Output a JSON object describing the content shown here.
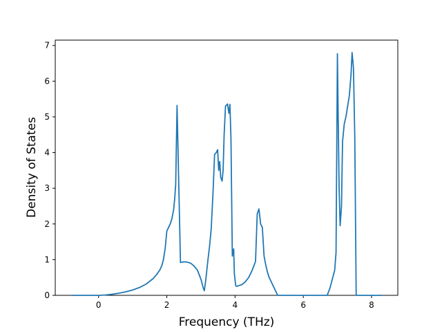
{
  "chart_data": {
    "type": "line",
    "title": "",
    "xlabel": "Frequency (THz)",
    "ylabel": "Density of States",
    "xlim": [
      -1.27,
      8.77
    ],
    "ylim": [
      0,
      7.15
    ],
    "x_ticks": [
      0,
      2,
      4,
      6,
      8
    ],
    "y_ticks": [
      0,
      1,
      2,
      3,
      4,
      5,
      6,
      7
    ],
    "x_tick_labels": [
      "0",
      "2",
      "4",
      "6",
      "8"
    ],
    "y_tick_labels": [
      "0",
      "1",
      "2",
      "3",
      "4",
      "5",
      "6",
      "7"
    ],
    "grid": false,
    "legend": "none",
    "series": [
      {
        "color": "#1f77b4",
        "x": [
          -0.77,
          -0.5,
          0.0,
          0.2,
          0.4,
          0.6,
          0.8,
          1.0,
          1.2,
          1.4,
          1.6,
          1.7,
          1.8,
          1.86,
          1.9,
          1.95,
          2.0,
          2.05,
          2.1,
          2.15,
          2.2,
          2.23,
          2.26,
          2.3,
          2.4,
          2.5,
          2.6,
          2.7,
          2.8,
          2.9,
          3.0,
          3.07,
          3.1,
          3.15,
          3.2,
          3.25,
          3.3,
          3.34,
          3.36,
          3.4,
          3.45,
          3.49,
          3.52,
          3.55,
          3.58,
          3.62,
          3.65,
          3.68,
          3.72,
          3.78,
          3.82,
          3.85,
          3.88,
          3.92,
          3.96,
          3.98,
          4.02,
          4.05,
          4.1,
          4.2,
          4.3,
          4.4,
          4.5,
          4.6,
          4.65,
          4.7,
          4.75,
          4.8,
          4.85,
          4.9,
          4.95,
          5.0,
          5.1,
          5.2,
          5.25,
          5.5,
          6.0,
          6.5,
          6.7,
          6.78,
          6.85,
          6.92,
          6.96,
          7.0,
          7.02,
          7.05,
          7.08,
          7.12,
          7.15,
          7.2,
          7.25,
          7.3,
          7.35,
          7.4,
          7.43,
          7.47,
          7.51,
          7.55,
          7.58,
          7.7,
          8.0,
          8.3
        ],
        "y": [
          0,
          0,
          0,
          0.01,
          0.03,
          0.06,
          0.1,
          0.15,
          0.22,
          0.32,
          0.47,
          0.58,
          0.72,
          0.85,
          1.0,
          1.3,
          1.8,
          1.9,
          2.0,
          2.15,
          2.4,
          2.7,
          3.1,
          5.32,
          0.92,
          0.94,
          0.93,
          0.9,
          0.82,
          0.7,
          0.45,
          0.2,
          0.13,
          0.5,
          0.95,
          1.35,
          1.85,
          2.6,
          3.0,
          3.95,
          4.0,
          4.08,
          3.5,
          3.75,
          3.3,
          3.2,
          3.5,
          4.5,
          5.3,
          5.36,
          5.1,
          5.35,
          4.4,
          1.1,
          1.3,
          0.6,
          0.27,
          0.25,
          0.27,
          0.3,
          0.38,
          0.5,
          0.7,
          0.95,
          2.28,
          2.42,
          2.0,
          1.9,
          1.1,
          0.85,
          0.65,
          0.5,
          0.3,
          0.1,
          0.0,
          0,
          0,
          0,
          0.0,
          0.2,
          0.45,
          0.7,
          1.2,
          6.77,
          5.2,
          3.0,
          1.95,
          2.5,
          4.3,
          4.8,
          5.0,
          5.3,
          5.6,
          6.2,
          6.8,
          6.38,
          4.4,
          0.0,
          0,
          0,
          0,
          0
        ]
      }
    ]
  }
}
